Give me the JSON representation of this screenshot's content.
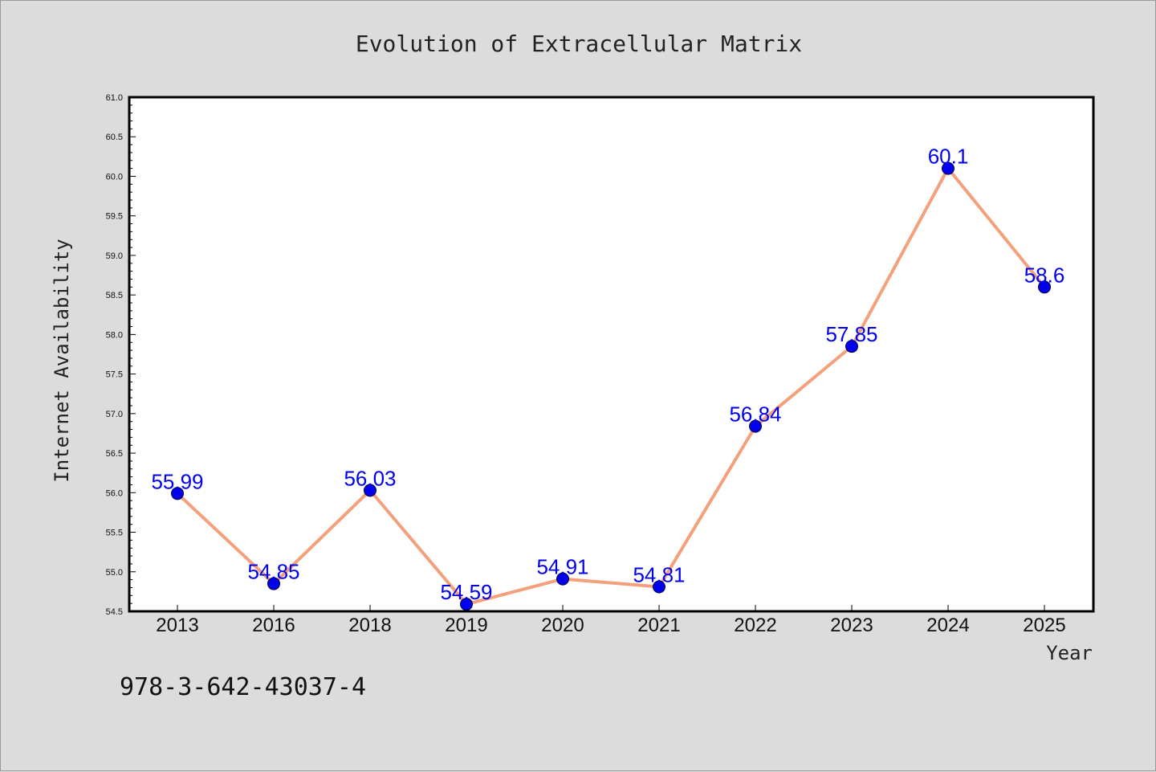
{
  "chart_data": {
    "type": "line",
    "title": "Evolution of Extracellular Matrix",
    "xlabel": "Year",
    "ylabel": "Internet Availability",
    "categories": [
      "2013",
      "2016",
      "2018",
      "2019",
      "2020",
      "2021",
      "2022",
      "2023",
      "2024",
      "2025"
    ],
    "values": [
      55.99,
      54.85,
      56.03,
      54.59,
      54.91,
      54.81,
      56.84,
      57.85,
      60.1,
      58.6
    ],
    "data_labels": [
      "55.99",
      "54.85",
      "56.03",
      "54.59",
      "54.91",
      "54.81",
      "56.84",
      "57.85",
      "60.1",
      "58.6"
    ],
    "ylim": [
      54.5,
      61.0
    ],
    "yticks": [
      "54.5",
      "55.0",
      "55.5",
      "56.0",
      "56.5",
      "57.0",
      "57.5",
      "58.0",
      "58.5",
      "59.0",
      "59.5",
      "60.0",
      "60.5",
      "61.0"
    ],
    "grid": false,
    "line_color": "#f4a07c",
    "marker_color": "#0000ee",
    "label_color": "#0000ee"
  },
  "footnote": "978-3-642-43037-4"
}
